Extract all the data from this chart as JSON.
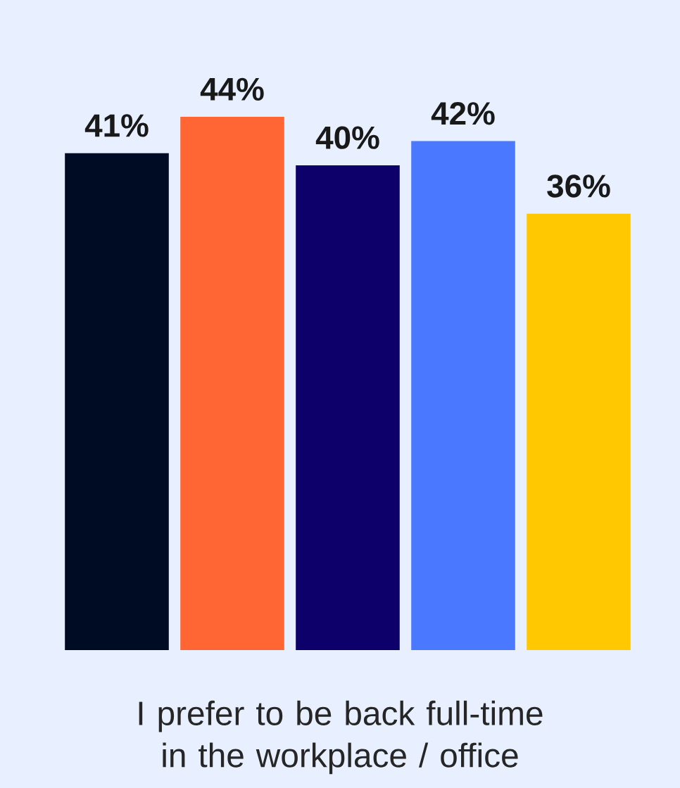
{
  "chart_data": {
    "type": "bar",
    "xlabel": "I prefer to be back full-time in the workplace / office",
    "categories": [
      null,
      null,
      null,
      null,
      null
    ],
    "values": [
      41,
      44,
      40,
      42,
      36
    ],
    "value_labels": [
      "41%",
      "44%",
      "40%",
      "42%",
      "36%"
    ],
    "colors": [
      "#000b24",
      "#ff6633",
      "#0d006b",
      "#4a78ff",
      "#ffc800"
    ]
  }
}
